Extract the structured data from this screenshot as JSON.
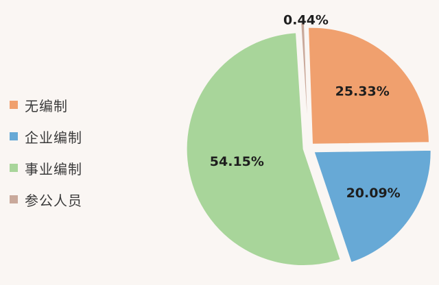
{
  "chart_data": {
    "type": "pie",
    "categories": [
      "无编制",
      "企业编制",
      "事业编制",
      "参公人员"
    ],
    "values": [
      25.33,
      20.09,
      54.15,
      0.44
    ],
    "data_labels": [
      "25.33%",
      "20.09%",
      "54.15%",
      "0.44%"
    ],
    "colors": [
      "#f0a06e",
      "#67a9d6",
      "#a8d59a",
      "#c9a99b"
    ],
    "legend_position": "left",
    "exploded": true
  }
}
